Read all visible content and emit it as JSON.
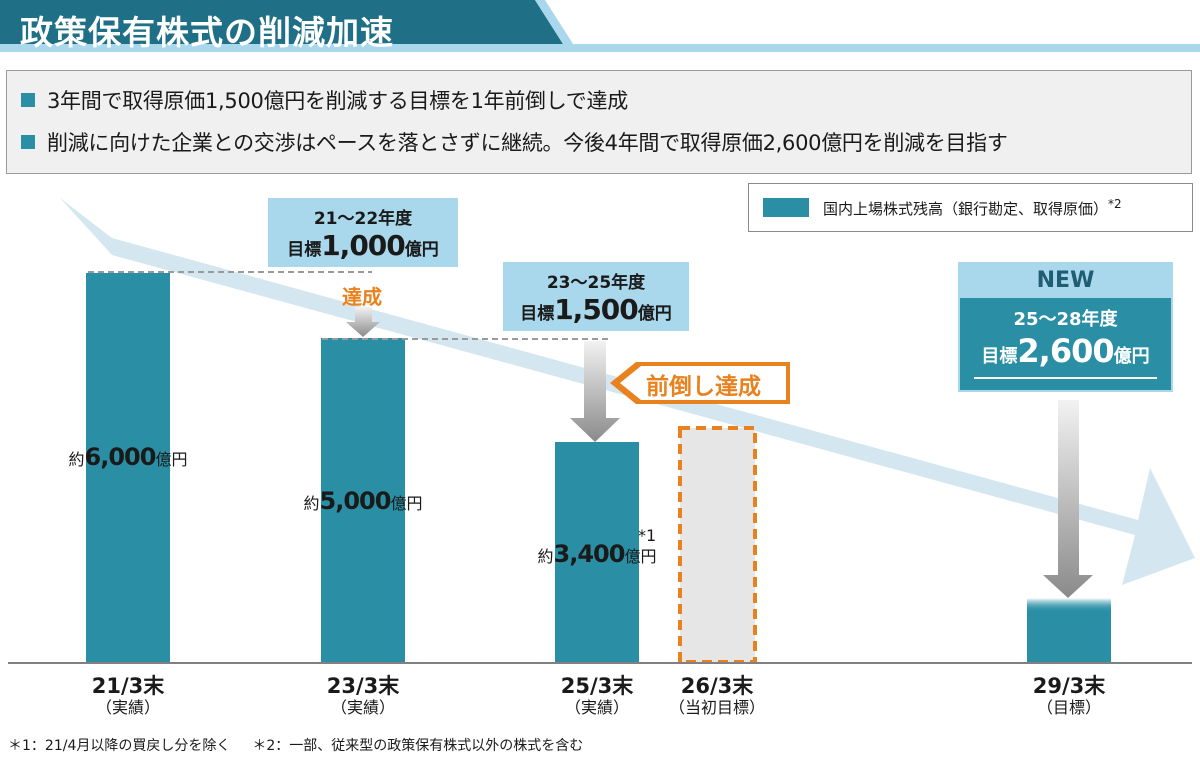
{
  "title": "政策保有株式の削減加速",
  "summary": {
    "bullets": [
      "3年間で取得原価1,500億円を削減する目標を1年前倒しで達成",
      "削減に向けた企業との交渉はペースを落とさずに継続。今後4年間で取得原価2,600億円を削減を目指す"
    ]
  },
  "legend": {
    "label": "国内上場株式残高（銀行勘定、取得原価）",
    "note": "*2"
  },
  "colors": {
    "bar": "#2a8fa5",
    "target_box": "#a9d8ec",
    "trend_arrow": "#cfe4ee",
    "accent_orange": "#e8821e",
    "gray_arrow": "#8a8a8a",
    "placeholder_fill": "#e6e6e6"
  },
  "chart_data": {
    "type": "bar",
    "categories": [
      "21/3末",
      "23/3末",
      "25/3末",
      "26/3末",
      "29/3末"
    ],
    "category_sublabels": [
      "（実績）",
      "（実績）",
      "（実績）",
      "（当初目標）",
      "（目標）"
    ],
    "values": [
      6000,
      5000,
      3400,
      null,
      1000
    ],
    "unit": "億円",
    "value_labels": [
      {
        "prefix": "約",
        "number": "6,000",
        "suffix": "億円"
      },
      {
        "prefix": "約",
        "number": "5,000",
        "suffix": "億円"
      },
      {
        "prefix": "約",
        "number": "3,400",
        "suffix": "億円",
        "note": "*1"
      },
      null,
      null
    ],
    "ylim": [
      0,
      6000
    ],
    "grid": false,
    "legend_position": "top-right"
  },
  "targets": [
    {
      "period": "21～22年度",
      "prefix": "目標",
      "number": "1,000",
      "suffix": "億円"
    },
    {
      "period": "23～25年度",
      "prefix": "目標",
      "number": "1,500",
      "suffix": "億円"
    }
  ],
  "new_target": {
    "tag": "NEW",
    "period": "25～28年度",
    "prefix": "目標",
    "number": "2,600",
    "suffix": "億円"
  },
  "annotations": {
    "achieved": "達成",
    "achieved_early": "前倒し達成"
  },
  "footnotes": [
    "＊1：21/4月以降の買戻し分を除く",
    "＊2：一部、従来型の政策保有株式以外の株式を含む"
  ]
}
